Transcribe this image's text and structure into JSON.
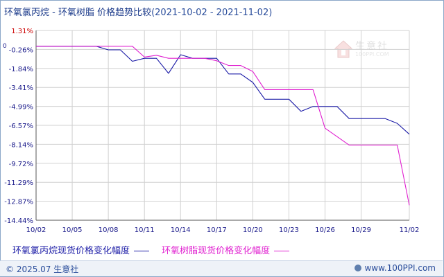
{
  "title": {
    "main": "环氧氯丙烷 - 环氧树脂 价格趋势比较",
    "range": "(2021-10-02 - 2021-11-02)"
  },
  "watermark": {
    "text": "生意社",
    "sub": "100PPI.COM"
  },
  "footer": {
    "copyright": "© 2025.07 生意社",
    "site": "www.100PPI.com"
  },
  "colors": {
    "series1": "#1a1aa6",
    "series2": "#e020d0",
    "axis": "#555555",
    "grid": "#d0d0d0",
    "tick_text": "#1a1a8a",
    "top_tick": "#cc0000"
  },
  "chart_data": {
    "type": "line",
    "title": "环氧氯丙烷 - 环氧树脂 价格趋势比较(2021-10-02 - 2021-11-02)",
    "xlabel": "",
    "ylabel": "",
    "x": [
      "10/02",
      "10/03",
      "10/04",
      "10/05",
      "10/06",
      "10/07",
      "10/08",
      "10/09",
      "10/10",
      "10/11",
      "10/12",
      "10/13",
      "10/14",
      "10/15",
      "10/16",
      "10/17",
      "10/18",
      "10/19",
      "10/20",
      "10/21",
      "10/22",
      "10/23",
      "10/24",
      "10/25",
      "10/26",
      "10/27",
      "10/28",
      "10/29",
      "10/30",
      "10/31",
      "11/01",
      "11/02"
    ],
    "x_ticks": [
      "10/02",
      "10/05",
      "10/08",
      "10/11",
      "10/14",
      "10/17",
      "10/20",
      "10/23",
      "10/26",
      "10/29",
      "11/02"
    ],
    "y_ticks": [
      "1.31%",
      "-0.26%",
      "-1.84%",
      "-3.41%",
      "-4.99%",
      "-6.57%",
      "-8.14%",
      "-9.72%",
      "-11.29%",
      "-12.87%",
      "-14.44%"
    ],
    "y_zero_label": "0",
    "ylim": [
      -14.44,
      1.31
    ],
    "grid": true,
    "legend_position": "bottom",
    "series": [
      {
        "name": "环氧氯丙烷现货价格变化幅度",
        "values": [
          0,
          0,
          0,
          0,
          0,
          0,
          -0.3,
          -0.3,
          -1.25,
          -1.0,
          -1.0,
          -2.25,
          -0.7,
          -1.0,
          -1.0,
          -1.0,
          -2.3,
          -2.3,
          -3.0,
          -4.4,
          -4.4,
          -4.4,
          -5.4,
          -5.0,
          -5.0,
          -5.0,
          -6.0,
          -6.0,
          -6.0,
          -6.0,
          -6.4,
          -7.3
        ]
      },
      {
        "name": "环氧树脂现货价格变化幅度",
        "values": [
          0,
          0,
          0,
          0,
          0,
          0,
          0,
          0,
          0,
          -0.9,
          -0.75,
          -1.0,
          -1.0,
          -1.0,
          -1.0,
          -1.2,
          -1.6,
          -1.6,
          -2.1,
          -3.6,
          -3.6,
          -3.6,
          -3.6,
          -3.6,
          -6.8,
          -7.5,
          -8.2,
          -8.2,
          -8.2,
          -8.2,
          -8.2,
          -13.2
        ]
      }
    ]
  }
}
